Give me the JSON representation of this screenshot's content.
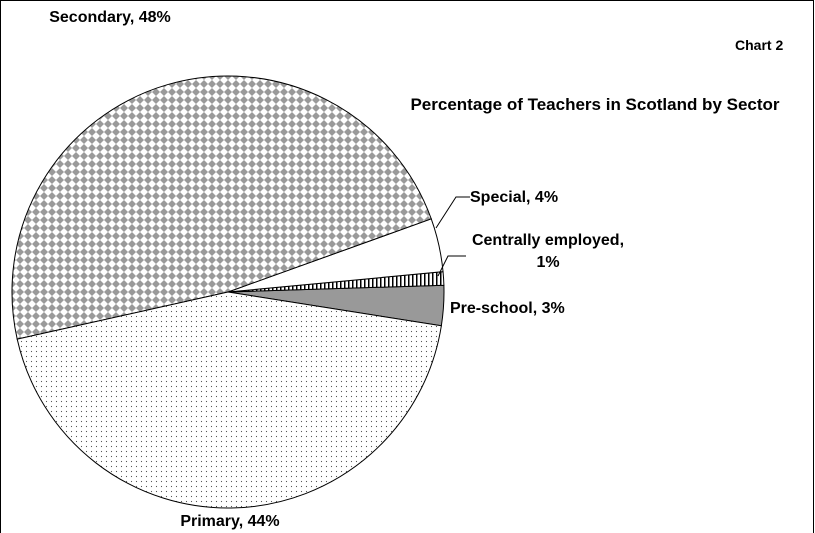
{
  "chart_data": {
    "type": "pie",
    "title": "Percentage of Teachers in Scotland by Sector",
    "annotation": "Chart 2",
    "values": [
      3,
      1,
      4,
      48,
      44
    ],
    "value_labels": [
      "Pre-school, 3%",
      "Centrally employed, 1%",
      "Special, 4%",
      "Secondary, 48%",
      "Primary, 44%"
    ]
  }
}
